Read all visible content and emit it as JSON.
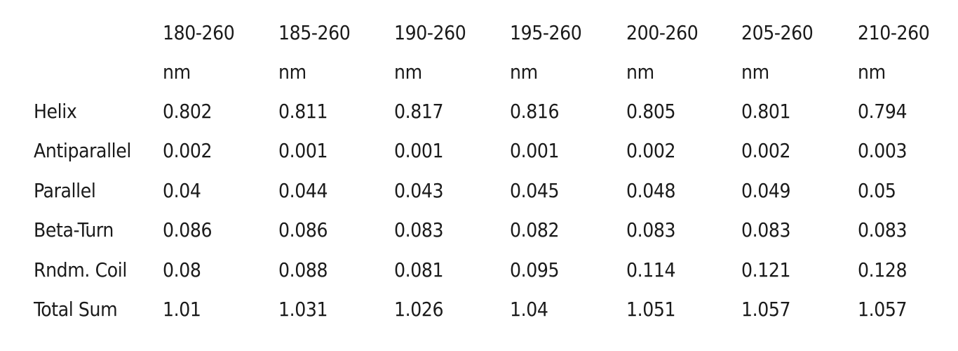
{
  "table": {
    "columns": [
      {
        "range": "180-260",
        "unit": "nm"
      },
      {
        "range": "185-260",
        "unit": "nm"
      },
      {
        "range": "190-260",
        "unit": "nm"
      },
      {
        "range": "195-260",
        "unit": "nm"
      },
      {
        "range": "200-260",
        "unit": "nm"
      },
      {
        "range": "205-260",
        "unit": "nm"
      },
      {
        "range": "210-260",
        "unit": "nm"
      }
    ],
    "rows": [
      {
        "label": "Helix",
        "values": [
          "0.802",
          "0.811",
          "0.817",
          "0.816",
          "0.805",
          "0.801",
          "0.794"
        ]
      },
      {
        "label": "Antiparallel",
        "values": [
          "0.002",
          "0.001",
          "0.001",
          "0.001",
          "0.002",
          "0.002",
          "0.003"
        ]
      },
      {
        "label": "Parallel",
        "values": [
          "0.04",
          "0.044",
          "0.043",
          "0.045",
          "0.048",
          "0.049",
          "0.05"
        ]
      },
      {
        "label": "Beta-Turn",
        "values": [
          "0.086",
          "0.086",
          "0.083",
          "0.082",
          "0.083",
          "0.083",
          "0.083"
        ]
      },
      {
        "label": "Rndm. Coil",
        "values": [
          "0.08",
          "0.088",
          "0.081",
          "0.095",
          "0.114",
          "0.121",
          "0.128"
        ]
      },
      {
        "label": "Total Sum",
        "values": [
          "1.01",
          "1.031",
          "1.026",
          "1.04",
          "1.051",
          "1.057",
          "1.057"
        ]
      }
    ]
  }
}
